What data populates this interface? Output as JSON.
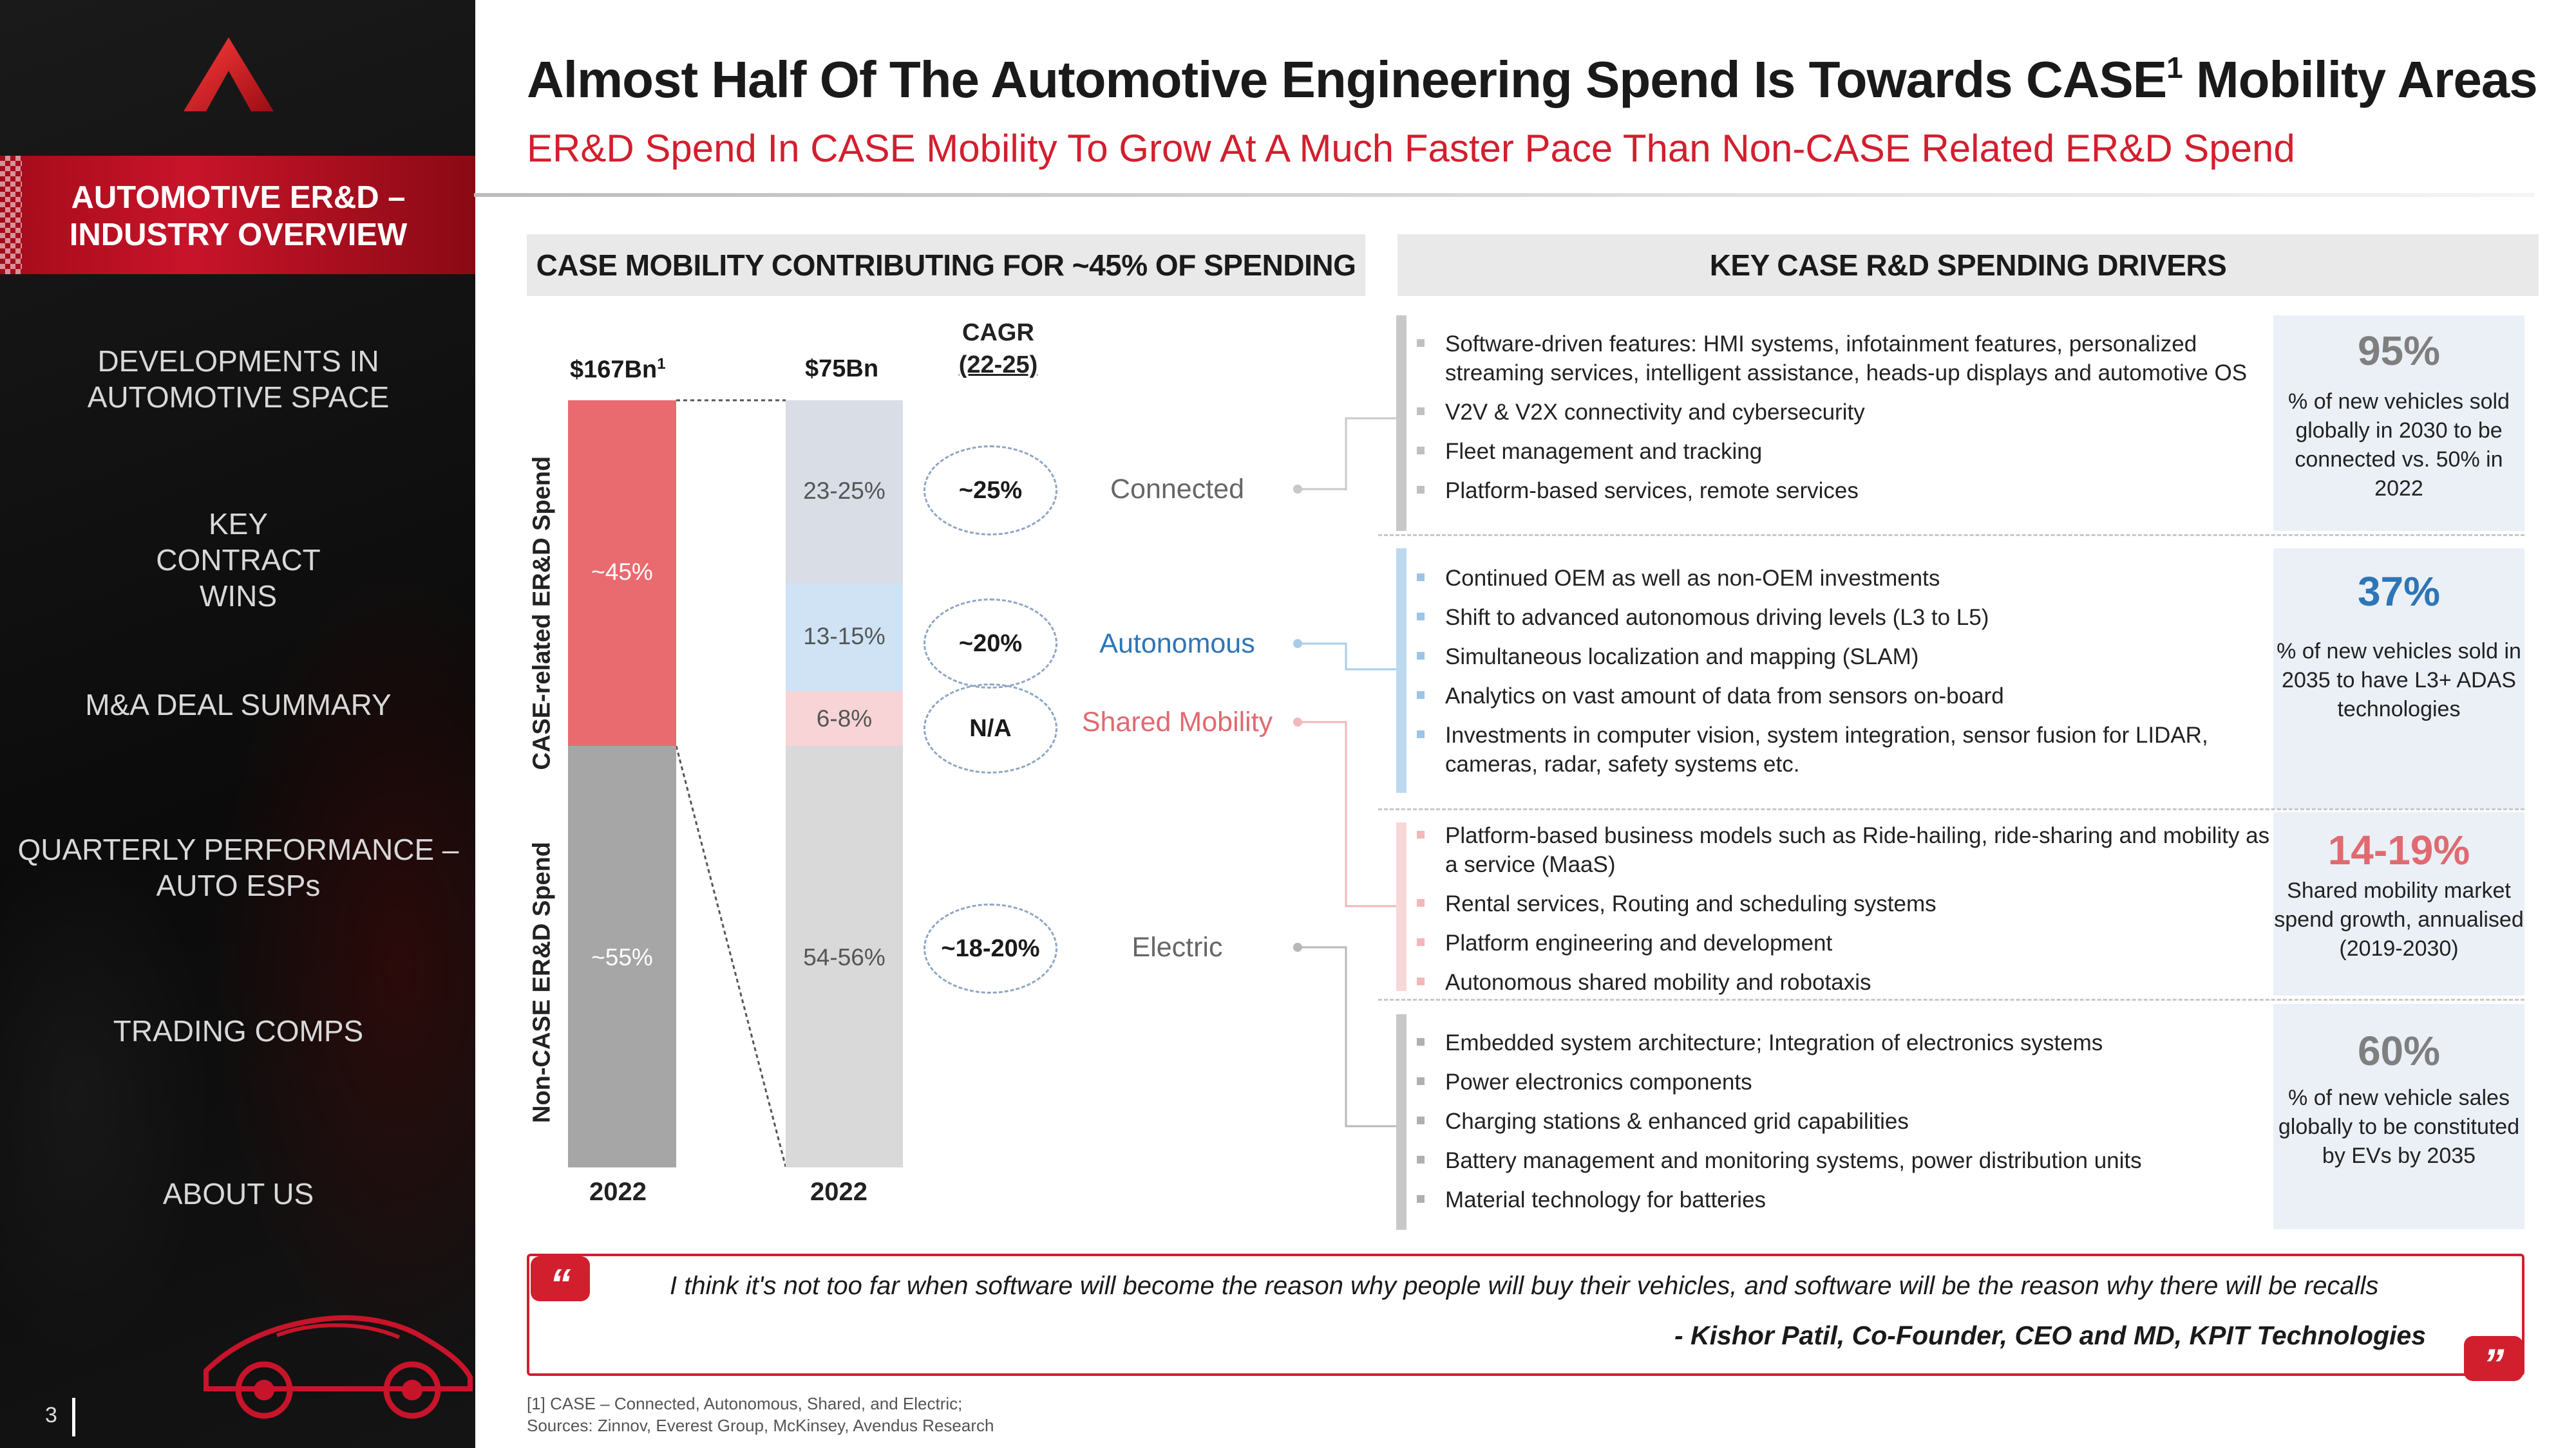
{
  "header": {
    "title": "Almost Half Of The Automotive Engineering Spend Is Towards CASE",
    "title_sup": "1",
    "title_suffix": " Mobility Areas",
    "subtitle": "ER&D Spend In CASE Mobility To Grow At A Much Faster Pace Than Non-CASE Related ER&D Spend"
  },
  "sidebar": {
    "active_item": "AUTOMOTIVE ER&D – INDUSTRY OVERVIEW",
    "items": [
      "DEVELOPMENTS IN AUTOMOTIVE SPACE",
      "KEY CONTRACT WINS",
      "M&A DEAL SUMMARY",
      "QUARTERLY PERFORMANCE – AUTO ESPs",
      "TRADING COMPS",
      "ABOUT US"
    ],
    "page_number": "3",
    "colors": {
      "accent": "#d21f2e",
      "background": "#111111"
    }
  },
  "left_panel": {
    "heading": "CASE MOBILITY CONTRIBUTING FOR ~45% OF SPENDING",
    "cagr_heading_line1": "CAGR",
    "cagr_heading_line2": "(22-25)",
    "axis_case": "CASE-related ER&D Spend",
    "axis_noncase": "Non-CASE ER&D Spend",
    "bar1": {
      "total": "$167Bn",
      "total_sup": "1",
      "year": "2022",
      "segments": [
        {
          "label": "~45%",
          "share": 45,
          "color": "#e96b70"
        },
        {
          "label": "~55%",
          "share": 55,
          "color": "#a6a6a6"
        }
      ]
    },
    "bar2": {
      "total": "$75Bn",
      "year": "2022",
      "segments": [
        {
          "label": "23-25%",
          "category": "Connected",
          "cagr": "~25%",
          "color": "#d8dde6",
          "cat_color": "#666666"
        },
        {
          "label": "13-15%",
          "category": "Autonomous",
          "cagr": "~20%",
          "color": "#cfe3f5",
          "cat_color": "#2e75b6"
        },
        {
          "label": "6-8%",
          "category": "Shared Mobility",
          "cagr": "N/A",
          "color": "#f8d4d6",
          "cat_color": "#e06a70"
        },
        {
          "label": "54-56%",
          "category": "Electric",
          "cagr": "~18-20%",
          "color": "#d9d9d9",
          "cat_color": "#666666"
        }
      ]
    }
  },
  "right_panel": {
    "heading": "KEY CASE R&D SPENDING DRIVERS",
    "groups": [
      {
        "name": "Connected",
        "bar_color": "#c8c8c8",
        "bullet_color": "#c0c0c0",
        "bullets": [
          "Software-driven features: HMI systems, infotainment features, personalized streaming services, intelligent assistance, heads-up displays and automotive OS",
          "V2V & V2X connectivity and cybersecurity",
          "Fleet management and tracking",
          "Platform-based services, remote services"
        ],
        "stat": "95%",
        "stat_color": "#7f7f7f",
        "stat_text": "% of new vehicles sold globally in 2030 to be connected vs. 50% in 2022"
      },
      {
        "name": "Autonomous",
        "bar_color": "#bcd9f0",
        "bullet_color": "#9cc5e6",
        "bullets": [
          "Continued OEM as well as non-OEM investments",
          "Shift to advanced autonomous driving levels (L3 to L5)",
          "Simultaneous localization and mapping (SLAM)",
          "Analytics on vast amount of data from sensors on-board",
          "Investments in computer vision, system integration, sensor fusion for LIDAR, cameras, radar, safety systems etc."
        ],
        "stat": "37%",
        "stat_color": "#2e75b6",
        "stat_text": "% of new vehicles sold in 2035 to have L3+ ADAS technologies"
      },
      {
        "name": "Shared Mobility",
        "bar_color": "#f8d7d8",
        "bullet_color": "#f2b7ba",
        "bullets": [
          "Platform-based business models such as Ride-hailing, ride-sharing and mobility as a service (MaaS)",
          "Rental services, Routing and scheduling systems",
          "Platform engineering and development",
          "Autonomous shared mobility and robotaxis"
        ],
        "stat": "14-19%",
        "stat_color": "#e06a70",
        "stat_text": "Shared mobility market spend growth, annualised (2019-2030)"
      },
      {
        "name": "Electric",
        "bar_color": "#c8c8c8",
        "bullet_color": "#b0b0b0",
        "bullets": [
          "Embedded system architecture; Integration of electronics systems",
          "Power electronics components",
          "Charging stations & enhanced grid capabilities",
          "Battery management and monitoring systems, power distribution units",
          "Material technology for batteries"
        ],
        "stat": "60%",
        "stat_color": "#7f7f7f",
        "stat_text": "% of new vehicle sales globally to be constituted by EVs by 2035"
      }
    ]
  },
  "quote": {
    "text": "I think it's not too far when software will become the reason why people will buy their vehicles, and software will be the reason why there will be recalls",
    "author": "- Kishor Patil, Co-Founder, CEO and MD, KPIT Technologies",
    "open_mark": "“",
    "close_mark": "”"
  },
  "footnotes": {
    "note1": "[1] CASE – Connected, Autonomous, Shared, and Electric;",
    "sources": "Sources: Zinnov, Everest Group, McKinsey, Avendus Research"
  }
}
